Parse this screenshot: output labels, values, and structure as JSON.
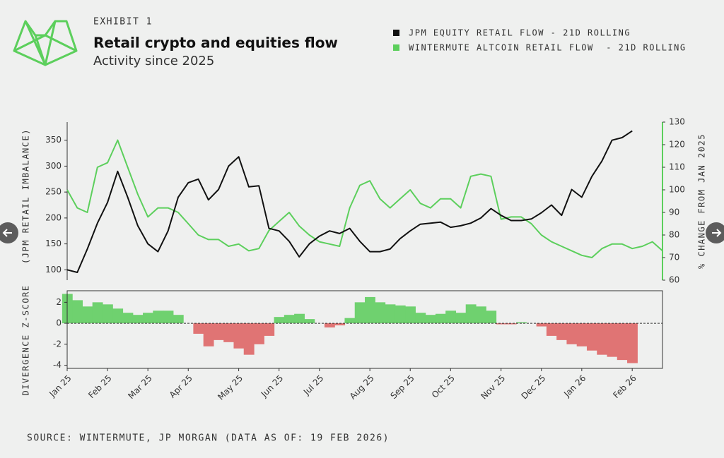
{
  "header": {
    "exhibit": "EXHIBIT 1",
    "title": "Retail crypto and equities flow",
    "subtitle": "Activity since 2025"
  },
  "source": "SOURCE: WINTERMUTE, JP MORGAN (DATA AS OF: 19 FEB 2026)",
  "chart_data": [
    {
      "type": "line",
      "ylabel": "(JPM RETAIL IMBALANCE)",
      "y2label": "% CHANGE FROM JAN 2025",
      "ylim": [
        80,
        385
      ],
      "yticks": [
        100,
        150,
        200,
        250,
        300,
        350
      ],
      "y2lim": [
        60,
        130
      ],
      "y2ticks": [
        60,
        70,
        80,
        90,
        100,
        110,
        120,
        130
      ],
      "series": [
        {
          "name": "JPM EQUITY RETAIL FLOW - 21D ROLLING",
          "color": "#111111",
          "values": [
            100,
            95,
            140,
            190,
            230,
            290,
            240,
            185,
            150,
            135,
            175,
            240,
            268,
            275,
            235,
            255,
            300,
            318,
            260,
            262,
            180,
            175,
            155,
            125,
            150,
            165,
            175,
            170,
            180,
            155,
            135,
            135,
            140,
            160,
            175,
            188,
            190,
            192,
            182,
            185,
            190,
            200,
            218,
            205,
            195,
            195,
            198,
            210,
            225,
            205,
            255,
            240,
            280,
            310,
            350,
            355,
            368,
            null,
            null,
            null
          ]
        },
        {
          "name": "WINTERMUTE ALTCOIN RETAIL FLOW  - 21D ROLLING",
          "color": "#5ccf5c",
          "axis": "y2",
          "values": [
            100,
            92,
            90,
            110,
            112,
            122,
            110,
            98,
            88,
            92,
            92,
            90,
            85,
            80,
            78,
            78,
            75,
            76,
            73,
            74,
            82,
            86,
            90,
            84,
            80,
            77,
            76,
            75,
            92,
            102,
            104,
            96,
            92,
            96,
            100,
            94,
            92,
            96,
            96,
            92,
            106,
            107,
            106,
            87,
            88,
            88,
            85,
            80,
            77,
            75,
            73,
            71,
            70,
            74,
            76,
            76,
            74,
            75,
            77,
            73
          ]
        }
      ]
    },
    {
      "type": "area",
      "ylabel": "DIVERGENCE Z-SCORE",
      "ylim": [
        -4.3,
        3.1
      ],
      "yticks": [
        -4,
        -2,
        0,
        2
      ],
      "positive_color": "#6fd16f",
      "negative_color": "#e07474",
      "categories": [
        "Jan 25",
        null,
        null,
        null,
        "Feb 25",
        null,
        null,
        null,
        "Mar 25",
        null,
        null,
        null,
        "Apr 25",
        null,
        null,
        null,
        null,
        "May 25",
        null,
        null,
        null,
        "Jun 25",
        null,
        null,
        null,
        "Jul 25",
        null,
        null,
        null,
        null,
        "Aug 25",
        null,
        null,
        null,
        "Sep 25",
        null,
        null,
        null,
        "Oct 25",
        null,
        null,
        null,
        null,
        "Nov 25",
        null,
        null,
        null,
        "Dec 25",
        null,
        null,
        null,
        "Jan 26",
        null,
        null,
        null,
        null,
        "Feb 26",
        null,
        null,
        null
      ],
      "values": [
        2.8,
        2.2,
        1.6,
        2.0,
        1.8,
        1.4,
        1.0,
        0.8,
        1.0,
        1.2,
        1.2,
        0.8,
        0,
        -1.0,
        -2.2,
        -1.6,
        -1.8,
        -2.4,
        -3.0,
        -2.0,
        -1.2,
        0.6,
        0.8,
        0.9,
        0.4,
        0,
        -0.4,
        -0.2,
        0.5,
        2.0,
        2.5,
        2.0,
        1.8,
        1.7,
        1.6,
        1.0,
        0.8,
        0.9,
        1.2,
        1.0,
        1.8,
        1.6,
        1.2,
        -0.1,
        -0.1,
        0.1,
        0,
        -0.3,
        -1.2,
        -1.6,
        -2.0,
        -2.2,
        -2.6,
        -3.0,
        -3.2,
        -3.5,
        -3.8,
        null,
        null,
        null
      ]
    }
  ]
}
